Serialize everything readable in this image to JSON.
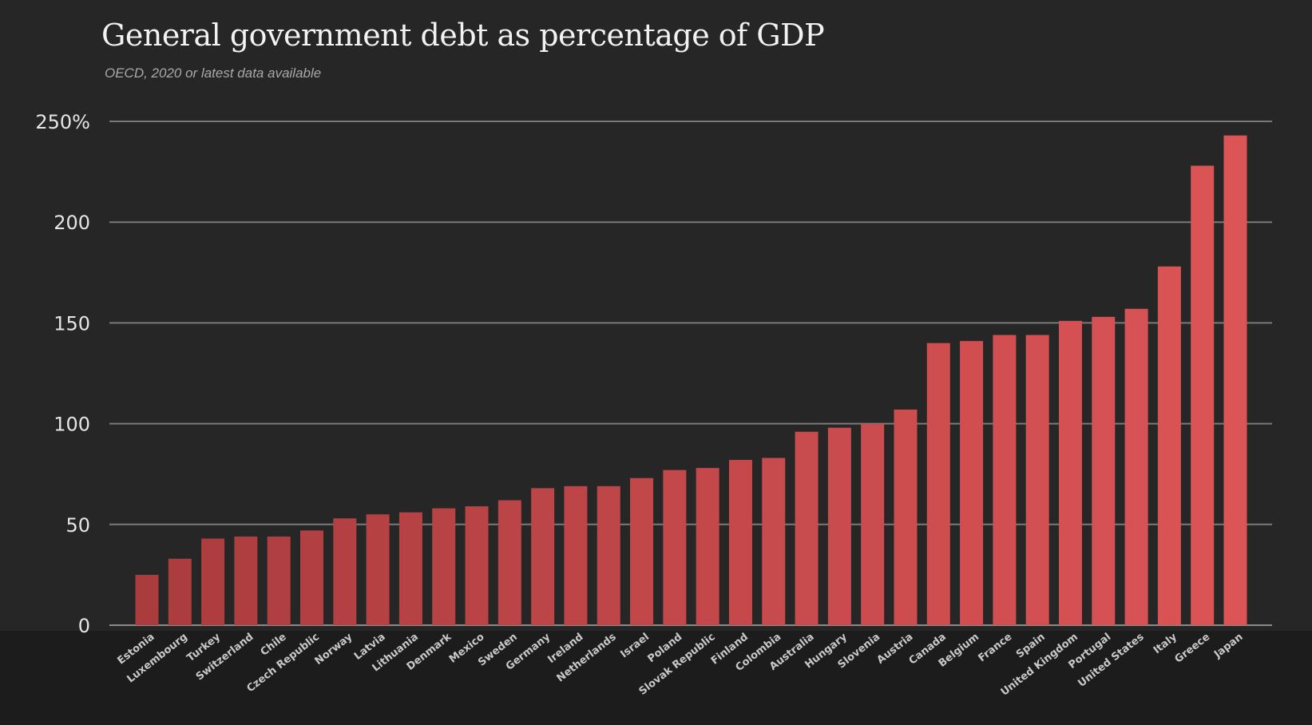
{
  "chart_data": {
    "type": "bar",
    "title": "General government debt as percentage of GDP",
    "subtitle": "OECD, 2020 or latest data available",
    "xlabel": "",
    "ylabel": "",
    "ylim": [
      0,
      250
    ],
    "yticks": [
      0,
      50,
      100,
      150,
      200,
      250
    ],
    "ytick_labels": [
      "0",
      "50",
      "100",
      "150",
      "200",
      "250%"
    ],
    "grid": true,
    "bar_color": "#c0444a",
    "bar_color_high": "#e0545a",
    "categories": [
      "Estonia",
      "Luxembourg",
      "Turkey",
      "Switzerland",
      "Chile",
      "Czech Republic",
      "Norway",
      "Latvia",
      "Lithuania",
      "Denmark",
      "Mexico",
      "Sweden",
      "Germany",
      "Ireland",
      "Netherlands",
      "Israel",
      "Poland",
      "Slovak Republic",
      "Finland",
      "Colombia",
      "Australia",
      "Hungary",
      "Slovenia",
      "Austria",
      "Canada",
      "Belgium",
      "France",
      "Spain",
      "United Kingdom",
      "Portugal",
      "United States",
      "Italy",
      "Greece",
      "Japan"
    ],
    "values": [
      25,
      33,
      43,
      44,
      44,
      47,
      53,
      55,
      56,
      58,
      59,
      62,
      68,
      69,
      69,
      73,
      77,
      78,
      82,
      83,
      96,
      98,
      100,
      107,
      140,
      141,
      144,
      144,
      151,
      153,
      157,
      178,
      228,
      243
    ]
  }
}
